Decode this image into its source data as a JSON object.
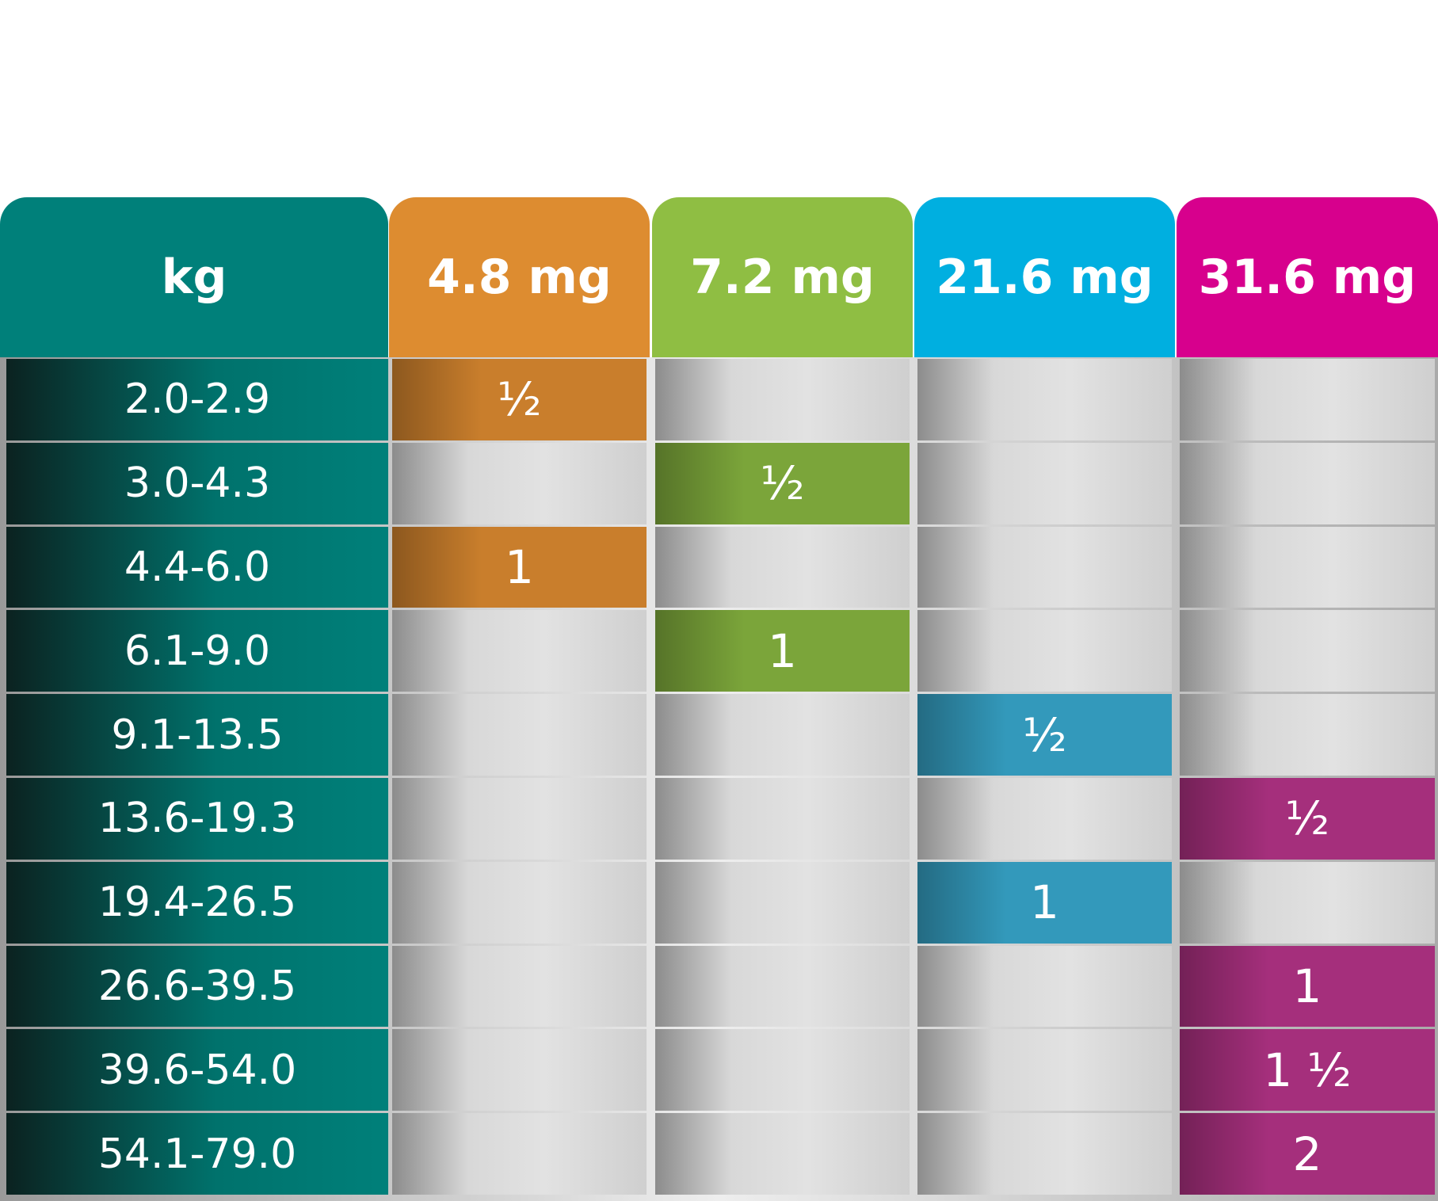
{
  "header": {
    "row_label": "kg",
    "row_label_color": "#00807a"
  },
  "columns": [
    {
      "label": "4.8 mg",
      "color": "#dd8c30",
      "fill": "#c97e2c"
    },
    {
      "label": "7.2 mg",
      "color": "#8fbe43",
      "fill": "#7ba53a"
    },
    {
      "label": "21.6 mg",
      "color": "#00afe0",
      "fill": "#3399bb"
    },
    {
      "label": "31.6 mg",
      "color": "#d7008d",
      "fill": "#a52f7c"
    }
  ],
  "rows": [
    {
      "kg": "2.0-2.9",
      "doses": [
        "½",
        null,
        null,
        null
      ]
    },
    {
      "kg": "3.0-4.3",
      "doses": [
        null,
        "½",
        null,
        null
      ]
    },
    {
      "kg": "4.4-6.0",
      "doses": [
        "1",
        null,
        null,
        null
      ]
    },
    {
      "kg": "6.1-9.0",
      "doses": [
        null,
        "1",
        null,
        null
      ]
    },
    {
      "kg": "9.1-13.5",
      "doses": [
        null,
        null,
        "½",
        null
      ]
    },
    {
      "kg": "13.6-19.3",
      "doses": [
        null,
        null,
        null,
        "½"
      ]
    },
    {
      "kg": "19.4-26.5",
      "doses": [
        null,
        null,
        "1",
        null
      ]
    },
    {
      "kg": "26.6-39.5",
      "doses": [
        null,
        null,
        null,
        "1"
      ]
    },
    {
      "kg": "39.6-54.0",
      "doses": [
        null,
        null,
        null,
        "1 ½"
      ]
    },
    {
      "kg": "54.1-79.0",
      "doses": [
        null,
        null,
        null,
        "2"
      ]
    }
  ]
}
